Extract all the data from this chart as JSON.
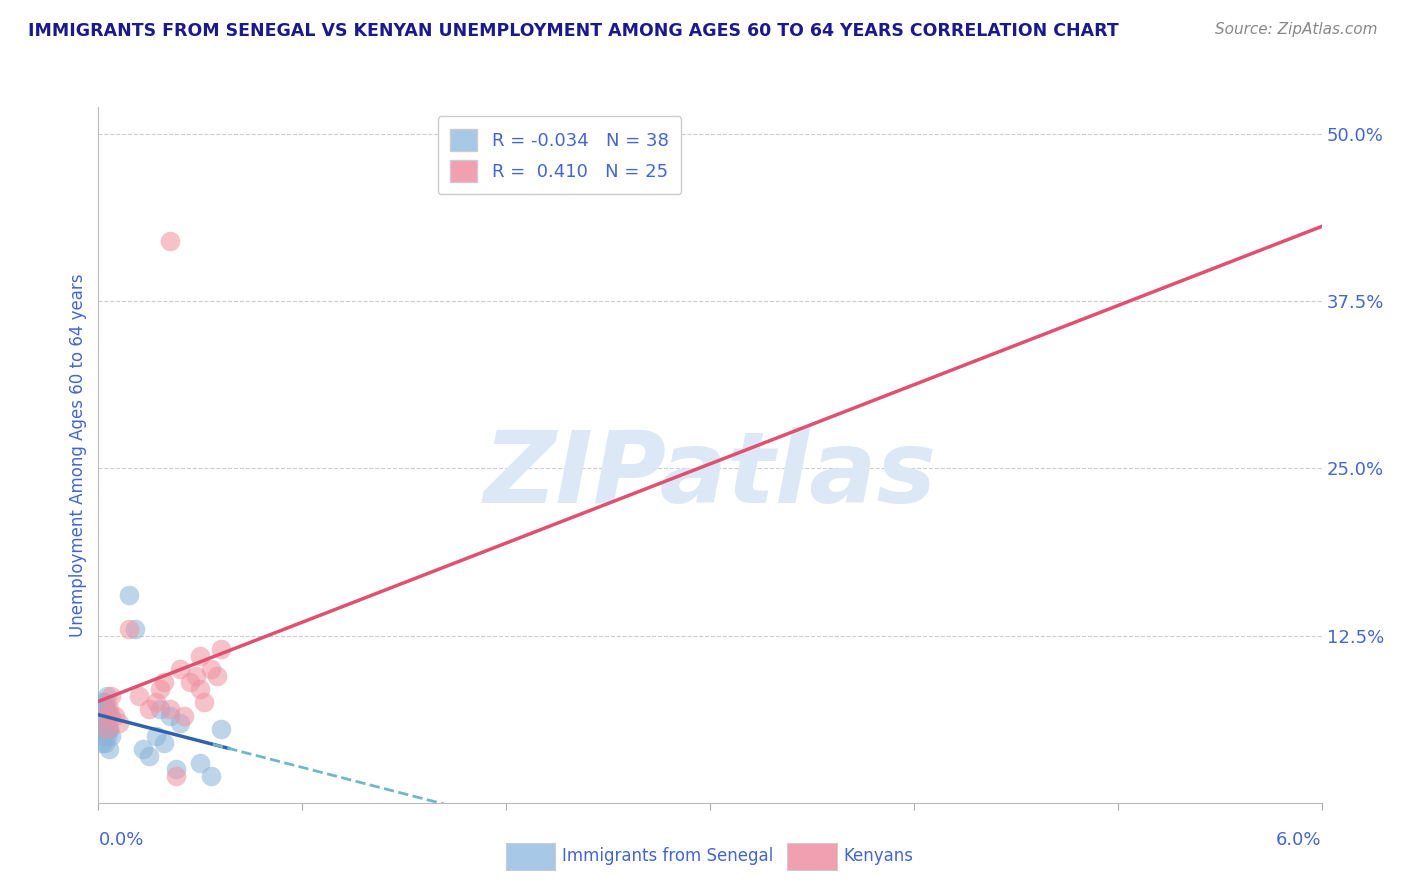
{
  "title": "IMMIGRANTS FROM SENEGAL VS KENYAN UNEMPLOYMENT AMONG AGES 60 TO 64 YEARS CORRELATION CHART",
  "source_text": "Source: ZipAtlas.com",
  "ylabel": "Unemployment Among Ages 60 to 64 years",
  "xlim": [
    0.0,
    0.06
  ],
  "ylim": [
    0.0,
    0.52
  ],
  "yticks": [
    0.0,
    0.125,
    0.25,
    0.375,
    0.5
  ],
  "ytick_labels": [
    "",
    "12.5%",
    "25.0%",
    "37.5%",
    "50.0%"
  ],
  "series_blue": {
    "x": [
      0.0002,
      0.0003,
      0.0005,
      0.0004,
      0.0006,
      0.0003,
      0.0002,
      0.0004,
      0.0005,
      0.0003,
      0.0002,
      0.0004,
      0.0003,
      0.0005,
      0.0002,
      0.0004,
      0.0003,
      0.0006,
      0.0002,
      0.0003,
      0.0004,
      0.0003,
      0.0005,
      0.0002,
      0.0004,
      0.0015,
      0.0018,
      0.0022,
      0.0025,
      0.003,
      0.0035,
      0.004,
      0.005,
      0.006,
      0.0028,
      0.0032,
      0.0038,
      0.0055
    ],
    "y": [
      0.055,
      0.07,
      0.065,
      0.06,
      0.05,
      0.075,
      0.045,
      0.08,
      0.055,
      0.06,
      0.065,
      0.05,
      0.07,
      0.055,
      0.075,
      0.06,
      0.045,
      0.065,
      0.05,
      0.07,
      0.055,
      0.065,
      0.04,
      0.06,
      0.07,
      0.155,
      0.13,
      0.04,
      0.035,
      0.07,
      0.065,
      0.06,
      0.03,
      0.055,
      0.05,
      0.045,
      0.025,
      0.02
    ],
    "color": "#8ab4d8",
    "alpha": 0.55
  },
  "series_pink": {
    "x": [
      0.0003,
      0.0005,
      0.0004,
      0.0006,
      0.0008,
      0.001,
      0.0015,
      0.002,
      0.0025,
      0.003,
      0.0028,
      0.0032,
      0.0035,
      0.004,
      0.0042,
      0.0045,
      0.005,
      0.0048,
      0.0052,
      0.0055,
      0.0058,
      0.006,
      0.0035,
      0.0038,
      0.005
    ],
    "y": [
      0.065,
      0.07,
      0.055,
      0.08,
      0.065,
      0.06,
      0.13,
      0.08,
      0.07,
      0.085,
      0.075,
      0.09,
      0.07,
      0.1,
      0.065,
      0.09,
      0.085,
      0.095,
      0.075,
      0.1,
      0.095,
      0.115,
      0.42,
      0.02,
      0.11
    ],
    "color": "#f090a0",
    "alpha": 0.55
  },
  "trend_blue_solid_color": "#3060b0",
  "trend_blue_dashed_color": "#70b8c8",
  "trend_pink_color": "#e05070",
  "watermark_text": "ZIPatlas",
  "watermark_color": "#dce8f5",
  "background_color": "#ffffff",
  "title_color": "#1a1a8c",
  "axis_label_color": "#4466cc",
  "source_color": "#888888",
  "grid_color": "#cccccc",
  "legend_entries": [
    {
      "label": "R = -0.034   N = 38",
      "color": "#a8c8e8"
    },
    {
      "label": "R =  0.410   N = 25",
      "color": "#f0a0b0"
    }
  ],
  "bottom_legend": [
    {
      "label": "Immigrants from Senegal",
      "color": "#a8c8e8"
    },
    {
      "label": "Kenyans",
      "color": "#f0a0b0"
    }
  ]
}
